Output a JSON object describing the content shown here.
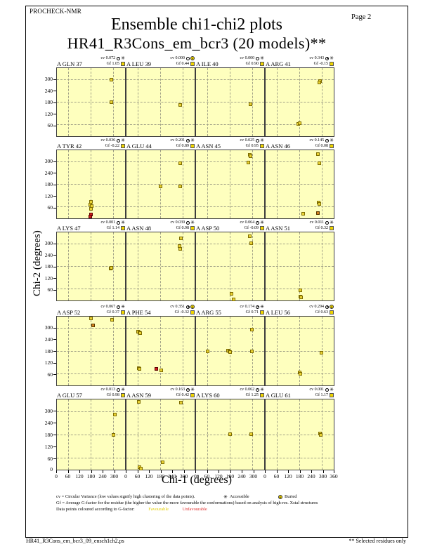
{
  "page": {
    "app_label": "PROCHECK-NMR",
    "page_number": "Page  2",
    "title": "Ensemble chi1-chi2 plots",
    "subtitle": "HR41_R3Cons_em_bcr3 (20 models)**",
    "footer_left": "HR41_R3Cons_em_bcr3_09_ensch1ch2.ps",
    "footer_right": "** Selected residues only"
  },
  "axes": {
    "xlabel": "Chi-1 (degrees)",
    "ylabel": "Chi-2 (degrees)",
    "x_ticks": [
      0,
      60,
      120,
      180,
      240,
      300
    ],
    "x_end_tick": 360,
    "y_ticks": [
      60,
      120,
      180,
      240,
      300
    ],
    "y_zero": "0",
    "gridlines_deg": [
      60,
      180,
      300
    ],
    "x_range": [
      0,
      360
    ],
    "y_range": [
      0,
      360
    ]
  },
  "legend": {
    "cv_line": "cv = Circular Variance (low values signify high clustering of the data points).",
    "accessible_label": "Accessible",
    "buried_label": "Buried",
    "gf_line": "Gf = Average G-factor for the residue (the higher the value the more favourable the conformations) based on analysis of high-res. Xstal structures",
    "colour_line": "Data points coloured according to G-factor:",
    "favourable_label": "Favourable",
    "unfavourable_label": "Unfavourable"
  },
  "colors": {
    "plot_bg": "#feffbe",
    "favourable": "#e9d234",
    "unfavourable": "#cf1f1f",
    "intermediate": "#d2801e",
    "grid": "#a2a287",
    "frame": "#3d3d3d"
  },
  "chart_data": {
    "type": "scatter",
    "x_range": [
      0,
      360
    ],
    "y_range": [
      0,
      360
    ],
    "subplots": [
      {
        "residue": "A GLN 37",
        "cv": 0.072,
        "cv_text": "cv 0.072",
        "gf_text": "Gf 1.05",
        "burial": "accessible",
        "points": [
          [
            290,
            300,
            "f"
          ],
          [
            290,
            180,
            "f"
          ]
        ]
      },
      {
        "residue": "A LEU 39",
        "cv": 0.0,
        "cv_text": "cv 0.000",
        "gf_text": "Gf 0.44",
        "burial": "buried",
        "points": [
          [
            285,
            165,
            "f"
          ]
        ]
      },
      {
        "residue": "A ILE 40",
        "cv": 0.0,
        "cv_text": "cv 0.000",
        "gf_text": "Gf 0.90",
        "burial": "accessible",
        "points": [
          [
            290,
            167,
            "f"
          ]
        ]
      },
      {
        "residue": "A ARG 41",
        "cv": 0.343,
        "cv_text": "cv 0.343",
        "gf_text": "Gf -0.15",
        "burial": "accessible",
        "points": [
          [
            288,
            291,
            "f"
          ],
          [
            284,
            282,
            "f"
          ],
          [
            174,
            62,
            "f"
          ],
          [
            181,
            67,
            "f"
          ]
        ]
      },
      {
        "residue": "A TYR 42",
        "cv": 0.036,
        "cv_text": "cv 0.036",
        "gf_text": "Gf -0.22",
        "burial": "accessible",
        "points": [
          [
            180,
            85,
            "f"
          ],
          [
            177,
            70,
            "f"
          ],
          [
            183,
            62,
            "f"
          ],
          [
            180,
            48,
            "f"
          ],
          [
            182,
            18,
            "u"
          ],
          [
            179,
            6,
            "u"
          ]
        ]
      },
      {
        "residue": "A GLU 44",
        "cv": 0.201,
        "cv_text": "cv 0.201",
        "gf_text": "Gf 0.89",
        "burial": "accessible",
        "points": [
          [
            285,
            292,
            "f"
          ],
          [
            182,
            167,
            "f"
          ],
          [
            286,
            167,
            "f"
          ]
        ]
      },
      {
        "residue": "A ASN 45",
        "cv": 0.025,
        "cv_text": "cv 0.025",
        "gf_text": "Gf 0.95",
        "burial": "accessible",
        "points": [
          [
            285,
            335,
            "f"
          ],
          [
            291,
            330,
            "f"
          ],
          [
            280,
            295,
            "f"
          ]
        ]
      },
      {
        "residue": "A ASN 46",
        "cv": 0.145,
        "cv_text": "cv 0.145",
        "gf_text": "Gf 0.08",
        "burial": "accessible",
        "points": [
          [
            280,
            341,
            "f"
          ],
          [
            285,
            290,
            "f"
          ],
          [
            283,
            83,
            "f"
          ],
          [
            287,
            76,
            "f"
          ],
          [
            278,
            25,
            "m"
          ],
          [
            198,
            22,
            "f"
          ]
        ]
      },
      {
        "residue": "A LYS 47",
        "cv": 0.001,
        "cv_text": "cv 0.001",
        "gf_text": "Gf 1.14",
        "burial": "accessible",
        "points": [
          [
            285,
            168,
            "f"
          ],
          [
            290,
            173,
            "f"
          ]
        ]
      },
      {
        "residue": "A ASN 48",
        "cv": 0.039,
        "cv_text": "cv 0.039",
        "gf_text": "Gf 0.98",
        "burial": "accessible",
        "points": [
          [
            291,
            329,
            "f"
          ],
          [
            283,
            287,
            "f"
          ],
          [
            285,
            273,
            "f"
          ]
        ]
      },
      {
        "residue": "A ASP 50",
        "cv": 0.064,
        "cv_text": "cv 0.064",
        "gf_text": "Gf -0.09",
        "burial": "accessible",
        "points": [
          [
            287,
            338,
            "f"
          ],
          [
            293,
            302,
            "f"
          ],
          [
            188,
            33,
            "f"
          ],
          [
            198,
            4,
            "f"
          ]
        ]
      },
      {
        "residue": "A ASN 51",
        "cv": 0.011,
        "cv_text": "cv 0.011",
        "gf_text": "Gf 0.32",
        "burial": "accessible",
        "points": [
          [
            185,
            51,
            "f"
          ],
          [
            186,
            19,
            "f"
          ],
          [
            190,
            14,
            "f"
          ]
        ]
      },
      {
        "residue": "A ASP 52",
        "cv": 0.067,
        "cv_text": "cv 0.067",
        "gf_text": "Gf 0.37",
        "burial": "accessible",
        "points": [
          [
            182,
            352,
            "f"
          ],
          [
            295,
            344,
            "f"
          ],
          [
            194,
            312,
            "m"
          ]
        ]
      },
      {
        "residue": "A PHE 54",
        "cv": 0.351,
        "cv_text": "cv 0.351",
        "gf_text": "Gf -0.32",
        "burial": "buried",
        "points": [
          [
            62,
            281,
            "f"
          ],
          [
            68,
            277,
            "f"
          ],
          [
            73,
            272,
            "f"
          ],
          [
            64,
            88,
            "f"
          ],
          [
            70,
            84,
            "f"
          ],
          [
            157,
            86,
            "u"
          ],
          [
            185,
            76,
            "f"
          ]
        ]
      },
      {
        "residue": "A ARG 55",
        "cv": 0.174,
        "cv_text": "cv 0.174",
        "gf_text": "Gf 0.71",
        "burial": "accessible",
        "points": [
          [
            61,
            177,
            "f"
          ],
          [
            170,
            181,
            "f"
          ],
          [
            176,
            178,
            "f"
          ],
          [
            182,
            174,
            "f"
          ],
          [
            297,
            177,
            "f"
          ],
          [
            297,
            290,
            "f"
          ]
        ]
      },
      {
        "residue": "A LEU 56",
        "cv": 0.294,
        "cv_text": "cv 0.294",
        "gf_text": "Gf 0.63",
        "burial": "buried",
        "points": [
          [
            297,
            170,
            "f"
          ],
          [
            180,
            65,
            "f"
          ],
          [
            186,
            60,
            "f"
          ]
        ]
      },
      {
        "residue": "A GLU 57",
        "cv": 0.013,
        "cv_text": "cv 0.013",
        "gf_text": "Gf 0.98",
        "burial": "accessible",
        "points": [
          [
            307,
            283,
            "f"
          ],
          [
            300,
            176,
            "f"
          ]
        ]
      },
      {
        "residue": "A ASN 59",
        "cv": 0.163,
        "cv_text": "cv 0.163",
        "gf_text": "Gf 0.42",
        "burial": "accessible",
        "points": [
          [
            64,
            349,
            "f"
          ],
          [
            289,
            345,
            "f"
          ],
          [
            194,
            35,
            "f"
          ],
          [
            70,
            10,
            "f"
          ],
          [
            76,
            5,
            "f"
          ]
        ]
      },
      {
        "residue": "A LYS 60",
        "cv": 0.062,
        "cv_text": "cv 0.062",
        "gf_text": "Gf 1.25",
        "burial": "accessible",
        "points": [
          [
            182,
            179,
            "f"
          ],
          [
            295,
            180,
            "f"
          ]
        ]
      },
      {
        "residue": "A GLU 61",
        "cv": 0.001,
        "cv_text": "cv 0.001",
        "gf_text": "Gf 1.17",
        "burial": "accessible",
        "points": [
          [
            290,
            183,
            "f"
          ],
          [
            294,
            177,
            "f"
          ]
        ]
      }
    ]
  }
}
